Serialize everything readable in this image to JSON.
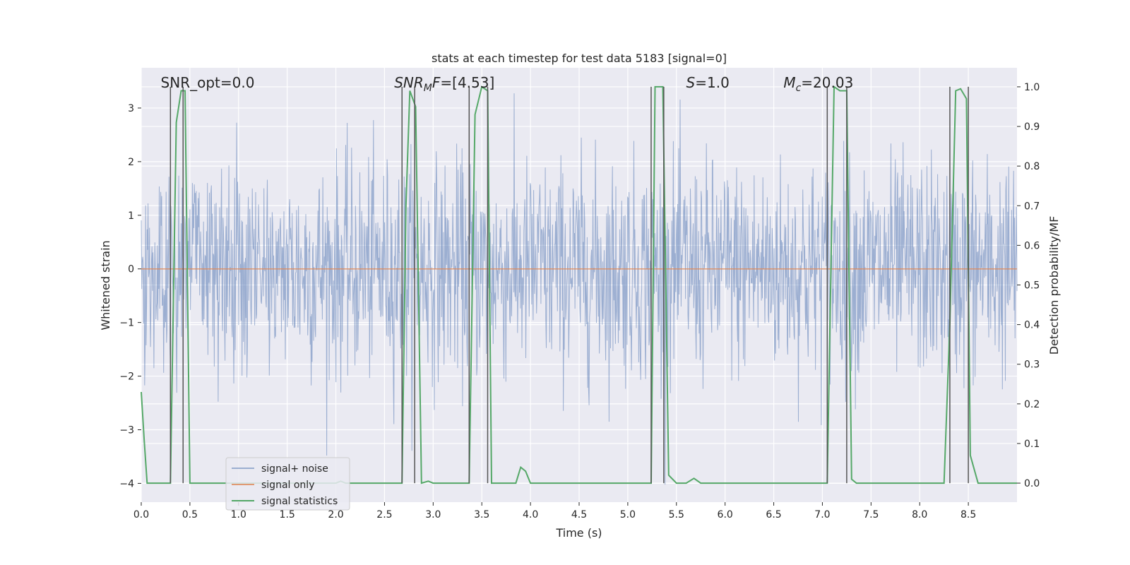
{
  "chart_data": {
    "type": "line",
    "title": "stats at each timestep for test data 5183 [signal=0]",
    "xlabel": "Time (s)",
    "ylabel": "Whitened strain",
    "y2label": "Detection probability/MF",
    "xlim": [
      0,
      9.0
    ],
    "ylim": [
      -4.35,
      3.75
    ],
    "y2lim": [
      -0.048,
      1.048
    ],
    "x_ticks": [
      0.0,
      0.5,
      1.0,
      1.5,
      2.0,
      2.5,
      3.0,
      3.5,
      4.0,
      4.5,
      5.0,
      5.5,
      6.0,
      6.5,
      7.0,
      7.5,
      8.0,
      8.5
    ],
    "x_tick_labels": [
      "0.0",
      "0.5",
      "1.0",
      "1.5",
      "2.0",
      "2.5",
      "3.0",
      "3.5",
      "4.0",
      "4.5",
      "5.0",
      "5.5",
      "6.0",
      "6.5",
      "7.0",
      "7.5",
      "8.0",
      "8.5"
    ],
    "y_ticks": [
      -4,
      -3,
      -2,
      -1,
      0,
      1,
      2,
      3
    ],
    "y_tick_labels": [
      "−4",
      "−3",
      "−2",
      "−1",
      "0",
      "1",
      "2",
      "3"
    ],
    "y2_ticks": [
      0.0,
      0.1,
      0.2,
      0.3,
      0.4,
      0.5,
      0.6,
      0.7,
      0.8,
      0.9,
      1.0
    ],
    "y2_tick_labels": [
      "0.0",
      "0.1",
      "0.2",
      "0.3",
      "0.4",
      "0.5",
      "0.6",
      "0.7",
      "0.8",
      "0.9",
      "1.0"
    ],
    "annotations": [
      {
        "text": "SNR_opt=0.0",
        "x": 0.2
      },
      {
        "text": "SNR_MF=[4.53]",
        "x": 2.6
      },
      {
        "text": "S=1.0",
        "x": 5.6
      },
      {
        "text": "Mc=20.03",
        "x": 6.6
      }
    ],
    "vertical_lines": [
      0.3,
      0.43,
      2.68,
      2.81,
      3.37,
      3.56,
      5.24,
      5.37,
      7.05,
      7.25,
      8.31,
      8.5
    ],
    "series": [
      {
        "name": "signal+ noise",
        "color": "#4c72b0",
        "axis": "left",
        "style": "noise",
        "x_range": [
          0,
          9.0
        ],
        "amplitude_sigma": 1.0
      },
      {
        "name": "signal only",
        "color": "#dd8452",
        "axis": "left",
        "x": [
          0,
          9.0
        ],
        "y": [
          0,
          0
        ]
      },
      {
        "name": "signal statistics",
        "color": "#55a868",
        "axis": "right",
        "x": [
          0.0,
          0.03,
          0.06,
          0.1,
          0.2,
          0.3,
          0.36,
          0.41,
          0.45,
          0.5,
          0.6,
          1.0,
          1.5,
          2.0,
          2.05,
          2.1,
          2.5,
          2.68,
          2.72,
          2.76,
          2.82,
          2.88,
          2.95,
          3.0,
          3.2,
          3.37,
          3.43,
          3.5,
          3.56,
          3.6,
          3.65,
          3.75,
          3.85,
          3.9,
          3.95,
          4.0,
          4.5,
          5.0,
          5.24,
          5.28,
          5.31,
          5.36,
          5.42,
          5.5,
          5.6,
          5.68,
          5.75,
          6.0,
          6.5,
          7.0,
          7.05,
          7.12,
          7.18,
          7.25,
          7.3,
          7.35,
          7.5,
          8.0,
          8.25,
          8.31,
          8.37,
          8.42,
          8.48,
          8.52,
          8.6,
          9.0
        ],
        "y": [
          0.23,
          0.11,
          0.0,
          0.0,
          0.0,
          0.0,
          0.91,
          0.99,
          0.99,
          0.0,
          0.0,
          0.0,
          0.0,
          0.0,
          0.005,
          0.0,
          0.0,
          0.0,
          0.7,
          0.99,
          0.95,
          0.0,
          0.005,
          0.0,
          0.0,
          0.0,
          0.93,
          1.0,
          0.99,
          0.0,
          0.0,
          0.0,
          0.0,
          0.04,
          0.03,
          0.0,
          0.0,
          0.0,
          0.0,
          1.0,
          1.0,
          1.0,
          0.02,
          0.0,
          0.0,
          0.012,
          0.0,
          0.0,
          0.0,
          0.0,
          0.0,
          1.0,
          0.99,
          0.99,
          0.01,
          0.0,
          0.0,
          0.0,
          0.0,
          0.4,
          0.99,
          0.995,
          0.97,
          0.07,
          0.0,
          0.0
        ]
      }
    ],
    "legend": {
      "position": "lower-left",
      "entries": [
        "signal+ noise",
        "signal only",
        "signal statistics"
      ]
    },
    "grid": true,
    "background": "#eaeaf2"
  }
}
